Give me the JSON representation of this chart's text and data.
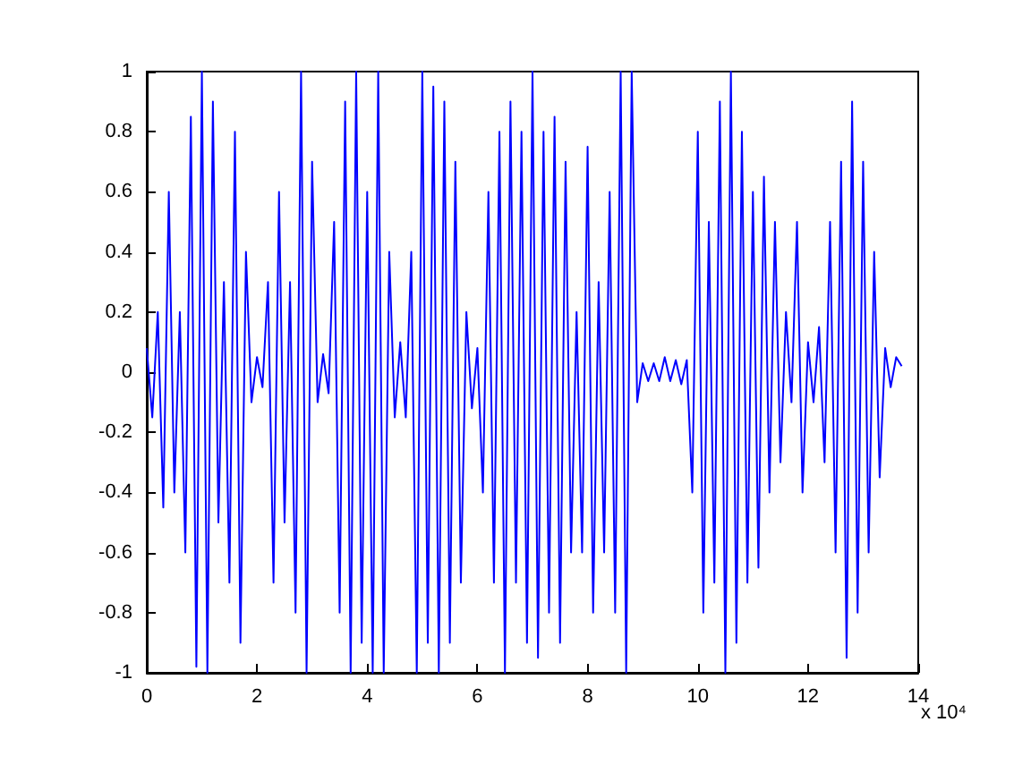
{
  "chart_data": {
    "type": "line",
    "annotations": [
      "x 10⁴"
    ],
    "xlim": [
      0,
      14
    ],
    "xticks": [
      0,
      2,
      4,
      6,
      8,
      10,
      12,
      14
    ],
    "ylim": [
      -1,
      1
    ],
    "yticks": [
      -1,
      -0.8,
      -0.6,
      -0.4,
      -0.2,
      0,
      0.2,
      0.4,
      0.6,
      0.8,
      1
    ],
    "grid": false,
    "marker": "none",
    "line_style": "solid",
    "series": [
      {
        "color": "#0000ff",
        "x": [
          0,
          0.1,
          0.2,
          0.3,
          0.4,
          0.5,
          0.6,
          0.7,
          0.8,
          0.9,
          1.0,
          1.1,
          1.2,
          1.3,
          1.4,
          1.5,
          1.6,
          1.7,
          1.8,
          1.9,
          2.0,
          2.1,
          2.2,
          2.3,
          2.4,
          2.5,
          2.6,
          2.7,
          2.8,
          2.9,
          3.0,
          3.1,
          3.2,
          3.3,
          3.4,
          3.5,
          3.6,
          3.7,
          3.8,
          3.9,
          4.0,
          4.1,
          4.2,
          4.3,
          4.4,
          4.5,
          4.6,
          4.7,
          4.8,
          4.9,
          5.0,
          5.1,
          5.2,
          5.3,
          5.4,
          5.5,
          5.6,
          5.7,
          5.8,
          5.9,
          6.0,
          6.1,
          6.2,
          6.3,
          6.4,
          6.5,
          6.6,
          6.7,
          6.8,
          6.9,
          7.0,
          7.1,
          7.2,
          7.3,
          7.4,
          7.5,
          7.6,
          7.7,
          7.8,
          7.9,
          8.0,
          8.1,
          8.2,
          8.3,
          8.4,
          8.5,
          8.6,
          8.7,
          8.8,
          8.9,
          9.0,
          9.1,
          9.2,
          9.3,
          9.4,
          9.5,
          9.6,
          9.7,
          9.8,
          9.9,
          10.0,
          10.1,
          10.2,
          10.3,
          10.4,
          10.5,
          10.6,
          10.7,
          10.8,
          10.9,
          11.0,
          11.1,
          11.2,
          11.3,
          11.4,
          11.5,
          11.6,
          11.7,
          11.8,
          11.9,
          12.0,
          12.1,
          12.2,
          12.3,
          12.4,
          12.5,
          12.6,
          12.7,
          12.8,
          12.9,
          13.0,
          13.1,
          13.2,
          13.3,
          13.4,
          13.5,
          13.6,
          13.7
        ],
        "values": [
          0.08,
          -0.15,
          0.2,
          -0.45,
          0.6,
          -0.4,
          0.2,
          -0.6,
          0.85,
          -0.98,
          1,
          -1,
          0.9,
          -0.5,
          0.3,
          -0.7,
          0.8,
          -0.9,
          0.4,
          -0.1,
          0.05,
          -0.05,
          0.3,
          -0.7,
          0.6,
          -0.5,
          0.3,
          -0.8,
          1,
          -1,
          0.7,
          -0.1,
          0.06,
          -0.07,
          0.5,
          -0.8,
          0.9,
          -1,
          1,
          -0.9,
          0.6,
          -1,
          1,
          -1,
          0.4,
          -0.15,
          0.1,
          -0.15,
          0.4,
          -1,
          1,
          -0.9,
          0.95,
          -1,
          0.9,
          -0.9,
          0.7,
          -0.7,
          0.2,
          -0.12,
          0.08,
          -0.4,
          0.6,
          -0.7,
          0.8,
          -1,
          0.9,
          -0.7,
          0.8,
          -0.9,
          1,
          -0.95,
          0.8,
          -0.8,
          0.85,
          -0.9,
          0.7,
          -0.6,
          0.2,
          -0.6,
          0.75,
          -0.8,
          0.3,
          -0.6,
          0.6,
          -0.8,
          1,
          -1,
          1,
          -0.1,
          0.03,
          -0.03,
          0.03,
          -0.03,
          0.05,
          -0.03,
          0.04,
          -0.04,
          0.04,
          -0.4,
          0.8,
          -0.8,
          0.5,
          -0.7,
          0.9,
          -1,
          1,
          -0.9,
          0.8,
          -0.7,
          0.6,
          -0.65,
          0.65,
          -0.4,
          0.5,
          -0.3,
          0.2,
          -0.1,
          0.5,
          -0.4,
          0.1,
          -0.1,
          0.15,
          -0.3,
          0.5,
          -0.6,
          0.7,
          -0.95,
          0.9,
          -0.8,
          0.7,
          -0.6,
          0.4,
          -0.35,
          0.08,
          -0.05,
          0.05,
          0.02
        ]
      }
    ]
  }
}
